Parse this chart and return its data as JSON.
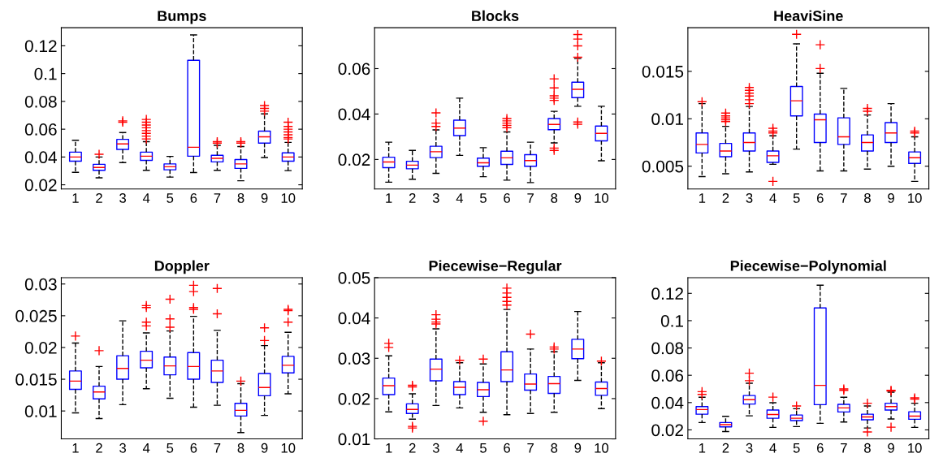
{
  "chart_data": [
    {
      "type": "box",
      "title": "Bumps",
      "categories": [
        "1",
        "2",
        "3",
        "4",
        "5",
        "6",
        "7",
        "8",
        "9",
        "10"
      ],
      "color": "#0000ff",
      "marker": "cross",
      "line_style": "dashed",
      "grid": false,
      "ylim": [
        0.017,
        0.133
      ],
      "yticks": [
        0.02,
        0.04,
        0.06,
        0.08,
        0.1,
        0.12
      ],
      "boxes": [
        {
          "low": 0.029,
          "q1": 0.037,
          "median": 0.04,
          "q3": 0.0435,
          "high": 0.052
        },
        {
          "low": 0.025,
          "q1": 0.0304,
          "median": 0.0325,
          "q3": 0.0347,
          "high": 0.04,
          "outliers": [
            0.042
          ]
        },
        {
          "low": 0.036,
          "q1": 0.0455,
          "median": 0.0494,
          "q3": 0.0527,
          "high": 0.0576,
          "outliers": [
            0.065,
            0.066
          ]
        },
        {
          "low": 0.0304,
          "q1": 0.0376,
          "median": 0.0406,
          "q3": 0.0435,
          "high": 0.051,
          "outliers": [
            0.053,
            0.055,
            0.057,
            0.059,
            0.061,
            0.063,
            0.065,
            0.067
          ]
        },
        {
          "low": 0.0255,
          "q1": 0.0308,
          "median": 0.033,
          "q3": 0.035,
          "high": 0.0404
        },
        {
          "low": 0.0288,
          "q1": 0.0406,
          "median": 0.047,
          "q3": 0.1096,
          "high": 0.1278
        },
        {
          "low": 0.0304,
          "q1": 0.0365,
          "median": 0.039,
          "q3": 0.0412,
          "high": 0.0484,
          "outliers": [
            0.05,
            0.051
          ]
        },
        {
          "low": 0.0229,
          "q1": 0.0318,
          "median": 0.035,
          "q3": 0.0382,
          "high": 0.0475,
          "outliers": [
            0.05,
            0.051
          ]
        },
        {
          "low": 0.0396,
          "q1": 0.05,
          "median": 0.0545,
          "q3": 0.0586,
          "high": 0.071,
          "outliers": [
            0.073,
            0.075,
            0.077
          ]
        },
        {
          "low": 0.0302,
          "q1": 0.037,
          "median": 0.04,
          "q3": 0.043,
          "high": 0.0505,
          "outliers": [
            0.053,
            0.054,
            0.056,
            0.058,
            0.06,
            0.062,
            0.065
          ]
        }
      ]
    },
    {
      "type": "box",
      "title": "Blocks",
      "categories": [
        "1",
        "2",
        "3",
        "4",
        "5",
        "6",
        "7",
        "8",
        "9",
        "10"
      ],
      "color": "#0000ff",
      "marker": "cross",
      "line_style": "dashed",
      "grid": false,
      "ylim": [
        0.007,
        0.078
      ],
      "yticks": [
        0.02,
        0.04,
        0.06
      ],
      "boxes": [
        {
          "low": 0.01,
          "q1": 0.0164,
          "median": 0.0189,
          "q3": 0.021,
          "high": 0.0276
        },
        {
          "low": 0.0113,
          "q1": 0.0159,
          "median": 0.0175,
          "q3": 0.0192,
          "high": 0.024
        },
        {
          "low": 0.0139,
          "q1": 0.0208,
          "median": 0.0234,
          "q3": 0.0258,
          "high": 0.033,
          "outliers": [
            0.0345,
            0.036,
            0.0405
          ]
        },
        {
          "low": 0.0218,
          "q1": 0.0305,
          "median": 0.0338,
          "q3": 0.0373,
          "high": 0.047
        },
        {
          "low": 0.0124,
          "q1": 0.017,
          "median": 0.0185,
          "q3": 0.0206,
          "high": 0.0252
        },
        {
          "low": 0.0109,
          "q1": 0.0178,
          "median": 0.0207,
          "q3": 0.0236,
          "high": 0.0321,
          "outliers": [
            0.034,
            0.035,
            0.036,
            0.037,
            0.038
          ]
        },
        {
          "low": 0.0098,
          "q1": 0.017,
          "median": 0.0195,
          "q3": 0.0221,
          "high": 0.0276
        },
        {
          "low": 0.0273,
          "q1": 0.0331,
          "median": 0.0354,
          "q3": 0.038,
          "high": 0.0412,
          "outliers": [
            0.024,
            0.025,
            0.046,
            0.047,
            0.048,
            0.0515,
            0.0555
          ]
        },
        {
          "low": 0.0434,
          "q1": 0.0472,
          "median": 0.0509,
          "q3": 0.054,
          "high": 0.0644,
          "outliers": [
            0.0355,
            0.0365,
            0.065,
            0.07,
            0.073,
            0.075
          ]
        },
        {
          "low": 0.0194,
          "q1": 0.0282,
          "median": 0.0315,
          "q3": 0.0347,
          "high": 0.0434
        }
      ]
    },
    {
      "type": "box",
      "title": "HeaviSine",
      "categories": [
        "1",
        "2",
        "3",
        "4",
        "5",
        "6",
        "7",
        "8",
        "9",
        "10"
      ],
      "color": "#0000ff",
      "marker": "cross",
      "line_style": "dashed",
      "grid": false,
      "ylim": [
        0.0026,
        0.0196
      ],
      "yticks": [
        0.005,
        0.01,
        0.015
      ],
      "boxes": [
        {
          "low": 0.0039,
          "q1": 0.0064,
          "median": 0.0073,
          "q3": 0.0085,
          "high": 0.0116,
          "outliers": [
            0.0118
          ]
        },
        {
          "low": 0.0042,
          "q1": 0.006,
          "median": 0.0066,
          "q3": 0.0074,
          "high": 0.0092,
          "outliers": [
            0.0097,
            0.0099,
            0.0101,
            0.0103,
            0.0106
          ]
        },
        {
          "low": 0.0044,
          "q1": 0.0066,
          "median": 0.0075,
          "q3": 0.0085,
          "high": 0.0113,
          "outliers": [
            0.0116,
            0.012,
            0.0124,
            0.0127,
            0.013,
            0.0133
          ]
        },
        {
          "low": 0.0052,
          "q1": 0.0054,
          "median": 0.0061,
          "q3": 0.0066,
          "high": 0.0082,
          "outliers": [
            0.0034,
            0.0085,
            0.0087,
            0.009
          ]
        },
        {
          "low": 0.0068,
          "q1": 0.0103,
          "median": 0.0119,
          "q3": 0.0134,
          "high": 0.0179,
          "outliers": [
            0.0189
          ]
        },
        {
          "low": 0.0045,
          "q1": 0.0075,
          "median": 0.0099,
          "q3": 0.0105,
          "high": 0.0148,
          "outliers": [
            0.0153,
            0.0178
          ]
        },
        {
          "low": 0.0045,
          "q1": 0.0073,
          "median": 0.0081,
          "q3": 0.0101,
          "high": 0.0132
        },
        {
          "low": 0.0047,
          "q1": 0.0066,
          "median": 0.0075,
          "q3": 0.0083,
          "high": 0.0104,
          "outliers": [
            0.0108,
            0.0111
          ]
        },
        {
          "low": 0.005,
          "q1": 0.0075,
          "median": 0.0085,
          "q3": 0.0096,
          "high": 0.0116
        },
        {
          "low": 0.0034,
          "q1": 0.0053,
          "median": 0.0059,
          "q3": 0.0065,
          "high": 0.0081,
          "outliers": [
            0.0085,
            0.0087
          ]
        }
      ]
    },
    {
      "type": "box",
      "title": "Doppler",
      "categories": [
        "1",
        "2",
        "3",
        "4",
        "5",
        "6",
        "7",
        "8",
        "9",
        "10"
      ],
      "color": "#0000ff",
      "marker": "cross",
      "line_style": "dashed",
      "grid": false,
      "ylim": [
        0.0056,
        0.031
      ],
      "yticks": [
        0.01,
        0.015,
        0.02,
        0.025,
        0.03
      ],
      "boxes": [
        {
          "low": 0.0097,
          "q1": 0.0134,
          "median": 0.0147,
          "q3": 0.0163,
          "high": 0.0207,
          "outliers": [
            0.0218
          ]
        },
        {
          "low": 0.0088,
          "q1": 0.0119,
          "median": 0.013,
          "q3": 0.0139,
          "high": 0.017,
          "outliers": [
            0.0195
          ]
        },
        {
          "low": 0.011,
          "q1": 0.015,
          "median": 0.0167,
          "q3": 0.0187,
          "high": 0.0242
        },
        {
          "low": 0.0135,
          "q1": 0.0168,
          "median": 0.018,
          "q3": 0.0194,
          "high": 0.0223,
          "outliers": [
            0.0234,
            0.024,
            0.0263,
            0.0266
          ]
        },
        {
          "low": 0.012,
          "q1": 0.0157,
          "median": 0.0171,
          "q3": 0.0185,
          "high": 0.0226,
          "outliers": [
            0.0232,
            0.0245,
            0.0276
          ]
        },
        {
          "low": 0.0106,
          "q1": 0.015,
          "median": 0.017,
          "q3": 0.0192,
          "high": 0.0249,
          "outliers": [
            0.026,
            0.0263,
            0.0288,
            0.0298
          ]
        },
        {
          "low": 0.0109,
          "q1": 0.0145,
          "median": 0.0163,
          "q3": 0.018,
          "high": 0.0227,
          "outliers": [
            0.0253,
            0.0293
          ]
        },
        {
          "low": 0.0066,
          "q1": 0.0092,
          "median": 0.0101,
          "q3": 0.0112,
          "high": 0.0143,
          "outliers": [
            0.0147
          ]
        },
        {
          "low": 0.0093,
          "q1": 0.0124,
          "median": 0.0137,
          "q3": 0.0159,
          "high": 0.0203,
          "outliers": [
            0.0211,
            0.0231
          ]
        },
        {
          "low": 0.0127,
          "q1": 0.016,
          "median": 0.0172,
          "q3": 0.0186,
          "high": 0.0224,
          "outliers": [
            0.024,
            0.0258,
            0.026
          ]
        }
      ]
    },
    {
      "type": "box",
      "title": "Piecewise−Regular",
      "categories": [
        "1",
        "2",
        "3",
        "4",
        "5",
        "6",
        "7",
        "8",
        "9",
        "10"
      ],
      "color": "#0000ff",
      "marker": "cross",
      "line_style": "dashed",
      "grid": false,
      "ylim": [
        0.01,
        0.05
      ],
      "yticks": [
        0.01,
        0.02,
        0.03,
        0.04,
        0.05
      ],
      "boxes": [
        {
          "low": 0.0167,
          "q1": 0.021,
          "median": 0.0232,
          "q3": 0.0251,
          "high": 0.0306,
          "outliers": [
            0.0327,
            0.0337
          ]
        },
        {
          "low": 0.0149,
          "q1": 0.0163,
          "median": 0.0173,
          "q3": 0.0187,
          "high": 0.0212,
          "outliers": [
            0.0127,
            0.0131,
            0.0229,
            0.0233
          ]
        },
        {
          "low": 0.0183,
          "q1": 0.0244,
          "median": 0.0273,
          "q3": 0.0298,
          "high": 0.0373,
          "outliers": [
            0.0385,
            0.039,
            0.0397,
            0.0408
          ]
        },
        {
          "low": 0.0177,
          "q1": 0.021,
          "median": 0.0228,
          "q3": 0.0242,
          "high": 0.0289,
          "outliers": [
            0.0295
          ]
        },
        {
          "low": 0.0166,
          "q1": 0.0205,
          "median": 0.0222,
          "q3": 0.024,
          "high": 0.0286,
          "outliers": [
            0.0144,
            0.0298
          ]
        },
        {
          "low": 0.016,
          "q1": 0.0242,
          "median": 0.0271,
          "q3": 0.0316,
          "high": 0.0421,
          "outliers": [
            0.0432,
            0.0441,
            0.0451,
            0.0462,
            0.0474
          ]
        },
        {
          "low": 0.0163,
          "q1": 0.0221,
          "median": 0.0236,
          "q3": 0.0261,
          "high": 0.0323,
          "outliers": [
            0.036
          ]
        },
        {
          "low": 0.0166,
          "q1": 0.0213,
          "median": 0.0237,
          "q3": 0.0255,
          "high": 0.0316,
          "outliers": [
            0.0323,
            0.0328
          ]
        },
        {
          "low": 0.0245,
          "q1": 0.0299,
          "median": 0.0323,
          "q3": 0.0347,
          "high": 0.0416
        },
        {
          "low": 0.0175,
          "q1": 0.0208,
          "median": 0.0225,
          "q3": 0.0241,
          "high": 0.0289,
          "outliers": [
            0.0293
          ]
        }
      ]
    },
    {
      "type": "box",
      "title": "Piecewise−Polynomial",
      "categories": [
        "1",
        "2",
        "3",
        "4",
        "5",
        "6",
        "7",
        "8",
        "9",
        "10"
      ],
      "color": "#0000ff",
      "marker": "cross",
      "line_style": "dashed",
      "grid": false,
      "ylim": [
        0.0134,
        0.1315
      ],
      "yticks": [
        0.02,
        0.04,
        0.06,
        0.08,
        0.1,
        0.12
      ],
      "boxes": [
        {
          "low": 0.0254,
          "q1": 0.0315,
          "median": 0.0349,
          "q3": 0.0371,
          "high": 0.0439,
          "outliers": [
            0.046,
            0.048
          ]
        },
        {
          "low": 0.0188,
          "q1": 0.0222,
          "median": 0.0238,
          "q3": 0.0254,
          "high": 0.0299
        },
        {
          "low": 0.0303,
          "q1": 0.0389,
          "median": 0.0421,
          "q3": 0.0452,
          "high": 0.0542,
          "outliers": [
            0.056,
            0.0615
          ]
        },
        {
          "low": 0.0218,
          "q1": 0.0285,
          "median": 0.0313,
          "q3": 0.0345,
          "high": 0.0399,
          "outliers": [
            0.044
          ]
        },
        {
          "low": 0.0224,
          "q1": 0.0268,
          "median": 0.0285,
          "q3": 0.0309,
          "high": 0.0355,
          "outliers": [
            0.0375
          ]
        },
        {
          "low": 0.0248,
          "q1": 0.0385,
          "median": 0.0526,
          "q3": 0.1093,
          "high": 0.126
        },
        {
          "low": 0.0258,
          "q1": 0.0331,
          "median": 0.0361,
          "q3": 0.0387,
          "high": 0.0439,
          "outliers": [
            0.049,
            0.05
          ]
        },
        {
          "low": 0.0214,
          "q1": 0.0274,
          "median": 0.0295,
          "q3": 0.0315,
          "high": 0.0375,
          "outliers": [
            0.0185,
            0.0395
          ]
        },
        {
          "low": 0.028,
          "q1": 0.0345,
          "median": 0.0371,
          "q3": 0.0395,
          "high": 0.0476,
          "outliers": [
            0.022,
            0.0485,
            0.049
          ]
        },
        {
          "low": 0.0218,
          "q1": 0.0278,
          "median": 0.0301,
          "q3": 0.0333,
          "high": 0.0395,
          "outliers": [
            0.0425,
            0.0435
          ]
        }
      ]
    }
  ]
}
